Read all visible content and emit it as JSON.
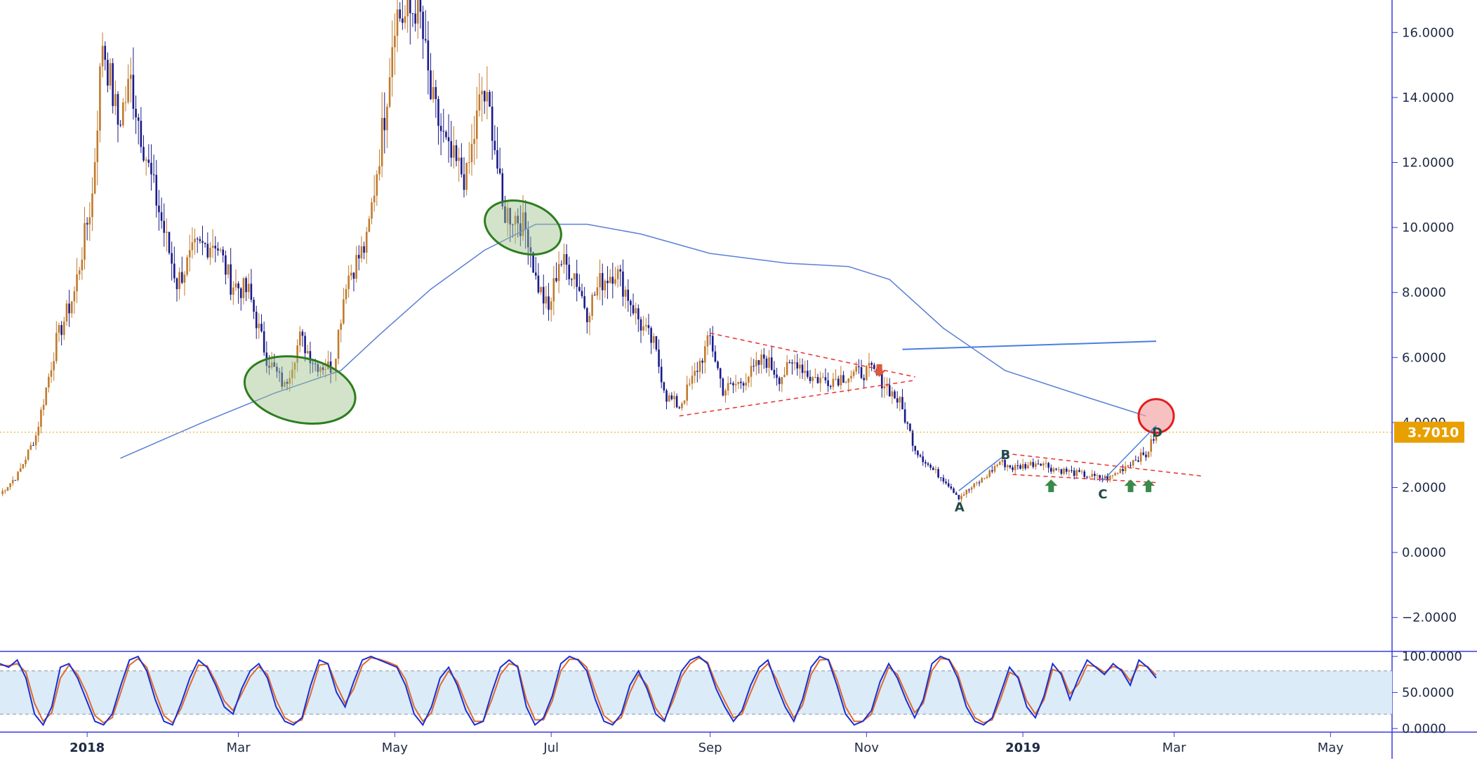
{
  "chart_data": [
    {
      "type": "candlestick",
      "pane": "price",
      "x_axis": {
        "labels": [
          "2018",
          "Mar",
          "May",
          "Jul",
          "Sep",
          "Nov",
          "2019",
          "Mar",
          "May"
        ],
        "bold_labels": [
          "2018",
          "2019"
        ],
        "range": [
          "2017-11-28",
          "2019-05-25"
        ]
      },
      "y_axis": {
        "ticks": [
          -2,
          0,
          2,
          4,
          6,
          8,
          10,
          12,
          14,
          16
        ],
        "tick_labels": [
          "−2.0000",
          "0.0000",
          "2.0000",
          "4.0000",
          "6.0000",
          "8.0000",
          "10.0000",
          "12.0000",
          "14.0000",
          "16.0000"
        ],
        "ylim": [
          -3,
          17
        ]
      },
      "price_series": {
        "up_color": "#c07a2c",
        "down_color": "#1a1a8a",
        "key_points": [
          [
            "2017-11-28",
            1.8
          ],
          [
            "2017-12-05",
            2.4
          ],
          [
            "2017-12-12",
            3.6
          ],
          [
            "2017-12-20",
            6.5
          ],
          [
            "2017-12-27",
            8.0
          ],
          [
            "2018-01-03",
            11.0
          ],
          [
            "2018-01-07",
            15.8
          ],
          [
            "2018-01-13",
            13.2
          ],
          [
            "2018-01-18",
            14.5
          ],
          [
            "2018-01-25",
            11.8
          ],
          [
            "2018-02-05",
            8.3
          ],
          [
            "2018-02-12",
            9.3
          ],
          [
            "2018-02-20",
            9.6
          ],
          [
            "2018-02-26",
            8.3
          ],
          [
            "2018-03-05",
            8.0
          ],
          [
            "2018-03-12",
            6.0
          ],
          [
            "2018-03-19",
            5.1
          ],
          [
            "2018-03-25",
            6.6
          ],
          [
            "2018-03-31",
            5.8
          ],
          [
            "2018-04-07",
            5.7
          ],
          [
            "2018-04-12",
            8.4
          ],
          [
            "2018-04-20",
            9.5
          ],
          [
            "2018-04-27",
            13.5
          ],
          [
            "2018-05-01",
            16.6
          ],
          [
            "2018-05-06",
            16.4
          ],
          [
            "2018-05-10",
            17.0
          ],
          [
            "2018-05-15",
            14.0
          ],
          [
            "2018-05-22",
            12.2
          ],
          [
            "2018-05-29",
            11.5
          ],
          [
            "2018-06-04",
            14.2
          ],
          [
            "2018-06-08",
            13.2
          ],
          [
            "2018-06-12",
            10.5
          ],
          [
            "2018-06-18",
            10.3
          ],
          [
            "2018-06-22",
            9.8
          ],
          [
            "2018-06-25",
            8.4
          ],
          [
            "2018-06-30",
            7.4
          ],
          [
            "2018-07-04",
            9.0
          ],
          [
            "2018-07-10",
            8.6
          ],
          [
            "2018-07-15",
            7.4
          ],
          [
            "2018-07-20",
            8.3
          ],
          [
            "2018-07-26",
            8.7
          ],
          [
            "2018-07-31",
            7.9
          ],
          [
            "2018-08-05",
            7.0
          ],
          [
            "2018-08-10",
            6.4
          ],
          [
            "2018-08-15",
            4.8
          ],
          [
            "2018-08-20",
            4.5
          ],
          [
            "2018-08-25",
            5.3
          ],
          [
            "2018-09-01",
            6.6
          ],
          [
            "2018-09-06",
            5.0
          ],
          [
            "2018-09-12",
            5.2
          ],
          [
            "2018-09-18",
            5.6
          ],
          [
            "2018-09-22",
            6.0
          ],
          [
            "2018-09-28",
            5.4
          ],
          [
            "2018-10-05",
            5.9
          ],
          [
            "2018-10-10",
            5.4
          ],
          [
            "2018-10-16",
            5.3
          ],
          [
            "2018-10-22",
            5.4
          ],
          [
            "2018-10-28",
            5.5
          ],
          [
            "2018-11-03",
            5.6
          ],
          [
            "2018-11-08",
            5.2
          ],
          [
            "2018-11-14",
            4.6
          ],
          [
            "2018-11-20",
            3.2
          ],
          [
            "2018-11-26",
            2.6
          ],
          [
            "2018-12-02",
            2.2
          ],
          [
            "2018-12-07",
            1.7
          ],
          [
            "2018-12-12",
            2.0
          ],
          [
            "2018-12-17",
            2.3
          ],
          [
            "2018-12-23",
            2.8
          ],
          [
            "2018-12-28",
            2.6
          ],
          [
            "2019-01-03",
            2.7
          ],
          [
            "2019-01-08",
            2.8
          ],
          [
            "2019-01-12",
            2.6
          ],
          [
            "2019-01-18",
            2.5
          ],
          [
            "2019-01-24",
            2.4
          ],
          [
            "2019-01-30",
            2.3
          ],
          [
            "2019-02-04",
            2.3
          ],
          [
            "2019-02-09",
            2.6
          ],
          [
            "2019-02-14",
            2.9
          ],
          [
            "2019-02-18",
            3.0
          ],
          [
            "2019-02-22",
            3.7
          ]
        ]
      },
      "moving_average": {
        "color": "#5a7fd6",
        "points": [
          [
            "2018-01-14",
            2.9
          ],
          [
            "2018-02-15",
            4.0
          ],
          [
            "2018-03-15",
            4.9
          ],
          [
            "2018-04-10",
            5.6
          ],
          [
            "2018-04-25",
            6.7
          ],
          [
            "2018-05-15",
            8.1
          ],
          [
            "2018-06-05",
            9.3
          ],
          [
            "2018-06-25",
            10.1
          ],
          [
            "2018-07-15",
            10.1
          ],
          [
            "2018-08-05",
            9.8
          ],
          [
            "2018-09-01",
            9.2
          ],
          [
            "2018-10-01",
            8.9
          ],
          [
            "2018-10-25",
            8.8
          ],
          [
            "2018-11-10",
            8.4
          ],
          [
            "2018-12-01",
            6.9
          ],
          [
            "2018-12-25",
            5.6
          ],
          [
            "2019-01-25",
            4.8
          ],
          [
            "2019-02-18",
            4.2
          ]
        ]
      },
      "horizontal_line": {
        "value": 3.701,
        "label": "3.7010",
        "color": "#e8a000"
      },
      "annotations": {
        "wave_labels": [
          {
            "text": "A",
            "date": "2018-12-07",
            "value": 1.4
          },
          {
            "text": "B",
            "date": "2018-12-25",
            "value": 3.0
          },
          {
            "text": "C",
            "date": "2019-02-01",
            "value": 1.8
          },
          {
            "text": "D",
            "date": "2019-02-22",
            "value": 3.7
          }
        ]
      }
    },
    {
      "type": "line",
      "pane": "stochastic",
      "y_axis": {
        "ticks": [
          0,
          50,
          100
        ],
        "tick_labels": [
          "0.0000",
          "50.0000",
          "100.0000"
        ],
        "ylim": [
          -5,
          107
        ],
        "band": [
          20,
          80
        ]
      },
      "series": [
        {
          "color": "#1a2fd6",
          "values": [
            90,
            85,
            95,
            70,
            20,
            5,
            30,
            85,
            90,
            70,
            40,
            10,
            5,
            20,
            60,
            95,
            100,
            80,
            40,
            10,
            5,
            35,
            70,
            95,
            85,
            60,
            30,
            20,
            55,
            80,
            90,
            70,
            30,
            10,
            5,
            15,
            60,
            95,
            90,
            50,
            30,
            65,
            95,
            100,
            95,
            90,
            85,
            60,
            20,
            5,
            30,
            70,
            85,
            60,
            25,
            5,
            10,
            50,
            85,
            95,
            85,
            30,
            5,
            15,
            45,
            90,
            100,
            95,
            80,
            40,
            10,
            5,
            20,
            60,
            80,
            55,
            20,
            10,
            45,
            80,
            95,
            100,
            90,
            55,
            30,
            10,
            25,
            60,
            85,
            95,
            60,
            30,
            10,
            40,
            85,
            100,
            95,
            60,
            20,
            5,
            10,
            25,
            65,
            90,
            70,
            40,
            15,
            40,
            90,
            100,
            95,
            70,
            30,
            10,
            5,
            15,
            50,
            85,
            70,
            30,
            15,
            45,
            90,
            75,
            40,
            70,
            95,
            85,
            75,
            90,
            80,
            60,
            95,
            85,
            70
          ]
        },
        {
          "color": "#e06a2a",
          "values": [
            88,
            87,
            90,
            78,
            35,
            10,
            22,
            70,
            88,
            75,
            50,
            18,
            8,
            15,
            50,
            88,
            97,
            85,
            50,
            18,
            8,
            28,
            60,
            88,
            87,
            65,
            38,
            25,
            48,
            72,
            86,
            75,
            40,
            15,
            8,
            12,
            48,
            88,
            90,
            60,
            35,
            55,
            88,
            98,
            96,
            92,
            87,
            68,
            30,
            10,
            22,
            60,
            80,
            65,
            35,
            10,
            10,
            40,
            75,
            90,
            87,
            40,
            12,
            12,
            38,
            80,
            96,
            96,
            85,
            50,
            18,
            8,
            15,
            50,
            75,
            60,
            28,
            12,
            38,
            72,
            90,
            98,
            92,
            62,
            38,
            15,
            20,
            50,
            78,
            90,
            68,
            38,
            15,
            32,
            75,
            95,
            96,
            68,
            30,
            10,
            10,
            20,
            55,
            85,
            75,
            48,
            22,
            35,
            80,
            97,
            96,
            76,
            38,
            15,
            8,
            12,
            42,
            78,
            72,
            38,
            20,
            40,
            82,
            78,
            48,
            62,
            88,
            86,
            78,
            86,
            82,
            66,
            88,
            86,
            74
          ]
        }
      ]
    }
  ]
}
